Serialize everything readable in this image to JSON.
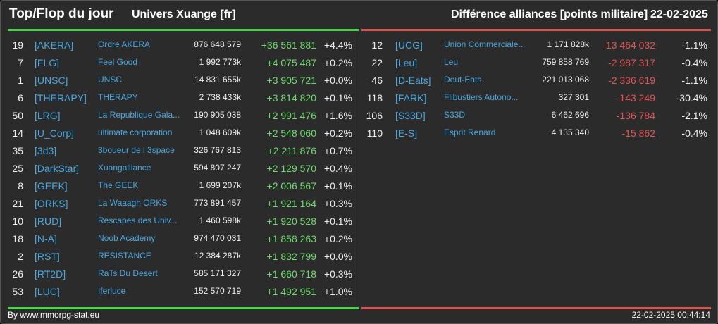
{
  "header": {
    "title": "Top/Flop du jour",
    "server": "Univers Xuange [fr]",
    "metric": "Différence alliances [points militaire]",
    "date": "22-02-2025"
  },
  "colors": {
    "positive": "#6fdc6f",
    "negative": "#e05555",
    "tag": "#4aa8e0",
    "top_bar": "#4cd14c",
    "flop_bar": "#d9534f"
  },
  "top": [
    {
      "rank": "19",
      "tag": "[AKERA]",
      "name": "Ordre AKERA",
      "points": "876 648 579",
      "diff": "+36 561 881",
      "pct": "+4.4%"
    },
    {
      "rank": "7",
      "tag": "[FLG]",
      "name": "Feel Good",
      "points": "1 992 773k",
      "diff": "+4 075 487",
      "pct": "+0.2%"
    },
    {
      "rank": "1",
      "tag": "[UNSC]",
      "name": "UNSC",
      "points": "14 831 655k",
      "diff": "+3 905 721",
      "pct": "+0.0%"
    },
    {
      "rank": "6",
      "tag": "[THERAPY]",
      "name": "THERAPY",
      "points": "2 738 433k",
      "diff": "+3 814 820",
      "pct": "+0.1%"
    },
    {
      "rank": "50",
      "tag": "[LRG]",
      "name": "La Republique Gala...",
      "points": "190 905 038",
      "diff": "+2 991 476",
      "pct": "+1.6%"
    },
    {
      "rank": "14",
      "tag": "[U_Corp]",
      "name": "ultimate corporation",
      "points": "1 048 609k",
      "diff": "+2 548 060",
      "pct": "+0.2%"
    },
    {
      "rank": "35",
      "tag": "[3d3]",
      "name": "3boueur de l 3space",
      "points": "326 767 813",
      "diff": "+2 211 876",
      "pct": "+0.7%"
    },
    {
      "rank": "25",
      "tag": "[DarkStar]",
      "name": "Xuangalliance",
      "points": "594 807 247",
      "diff": "+2 129 570",
      "pct": "+0.4%"
    },
    {
      "rank": "8",
      "tag": "[GEEK]",
      "name": "The GEEK",
      "points": "1 699 207k",
      "diff": "+2 006 567",
      "pct": "+0.1%"
    },
    {
      "rank": "21",
      "tag": "[ORKS]",
      "name": "La Waaagh ORKS",
      "points": "773 891 457",
      "diff": "+1 921 164",
      "pct": "+0.3%"
    },
    {
      "rank": "10",
      "tag": "[RUD]",
      "name": "Rescapes des Univ...",
      "points": "1 460 598k",
      "diff": "+1 920 528",
      "pct": "+0.1%"
    },
    {
      "rank": "18",
      "tag": "[N-A]",
      "name": "Noob Academy",
      "points": "974 470 031",
      "diff": "+1 858 263",
      "pct": "+0.2%"
    },
    {
      "rank": "2",
      "tag": "[RST]",
      "name": "RESISTANCE",
      "points": "12 384 287k",
      "diff": "+1 832 799",
      "pct": "+0.0%"
    },
    {
      "rank": "26",
      "tag": "[RT2D]",
      "name": "RaTs Du Desert",
      "points": "585 171 327",
      "diff": "+1 660 718",
      "pct": "+0.3%"
    },
    {
      "rank": "53",
      "tag": "[LUC]",
      "name": "Iferluce",
      "points": "152 570 719",
      "diff": "+1 492 951",
      "pct": "+1.0%"
    }
  ],
  "flop": [
    {
      "rank": "12",
      "tag": "[UCG]",
      "name": "Union Commerciale...",
      "points": "1 171 828k",
      "diff": "-13 464 032",
      "pct": "-1.1%"
    },
    {
      "rank": "22",
      "tag": "[Leu]",
      "name": "Leu",
      "points": "759 858 769",
      "diff": "-2 987 317",
      "pct": "-0.4%"
    },
    {
      "rank": "46",
      "tag": "[D-Eats]",
      "name": "Deut-Eats",
      "points": "221 013 068",
      "diff": "-2 336 619",
      "pct": "-1.1%"
    },
    {
      "rank": "118",
      "tag": "[FARK]",
      "name": "Flibustiers Autono...",
      "points": "327 301",
      "diff": "-143 249",
      "pct": "-30.4%"
    },
    {
      "rank": "106",
      "tag": "[S33D]",
      "name": "S33D",
      "points": "6 462 696",
      "diff": "-136 784",
      "pct": "-2.1%"
    },
    {
      "rank": "110",
      "tag": "[E-S]",
      "name": "Esprit Renard",
      "points": "4 135 340",
      "diff": "-15 862",
      "pct": "-0.4%"
    }
  ],
  "footer": {
    "credit": "By www.mmorpg-stat.eu",
    "timestamp": "22-02-2025 00:44:14"
  }
}
